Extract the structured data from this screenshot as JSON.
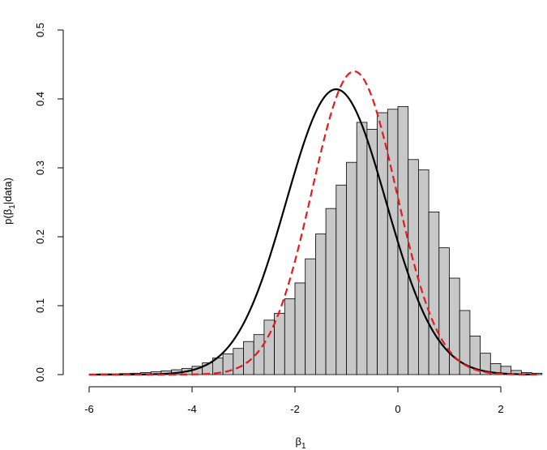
{
  "chart_data": {
    "type": "histogram",
    "xlabel": "β",
    "xlabel_sub": "1",
    "ylabel": "p(β",
    "ylabel_sub": "1",
    "ylabel_tail": "|data)",
    "xlim": [
      -6.2,
      2.7
    ],
    "ylim": [
      0,
      0.5
    ],
    "xticks": [
      -6,
      -4,
      -2,
      0,
      2
    ],
    "yticks": [
      0.0,
      0.1,
      0.2,
      0.3,
      0.4,
      0.5
    ],
    "xtick_labels": [
      "-6",
      "-4",
      "-2",
      "0",
      "2"
    ],
    "ytick_labels": [
      "0.0",
      "0.1",
      "0.2",
      "0.3",
      "0.4",
      "0.5"
    ],
    "grid": false,
    "histogram": {
      "bin_start": -6.0,
      "bin_width": 0.2,
      "fill": "#c8c8c8",
      "values": [
        0.0005,
        0.001,
        0.001,
        0.0015,
        0.002,
        0.003,
        0.004,
        0.0055,
        0.007,
        0.009,
        0.012,
        0.017,
        0.024,
        0.03,
        0.038,
        0.048,
        0.058,
        0.079,
        0.089,
        0.11,
        0.133,
        0.168,
        0.204,
        0.241,
        0.275,
        0.308,
        0.366,
        0.356,
        0.38,
        0.385,
        0.389,
        0.312,
        0.297,
        0.236,
        0.184,
        0.14,
        0.093,
        0.056,
        0.031,
        0.016,
        0.012,
        0.006,
        0.003,
        0.002
      ]
    },
    "curves": [
      {
        "style": "solid",
        "color": "#000000",
        "mean": -1.2,
        "sd": 0.97,
        "peak": 0.414
      },
      {
        "style": "dashed",
        "color": "#e41a1c",
        "mean": -0.85,
        "sd": 0.82,
        "peak": 0.44
      }
    ]
  }
}
